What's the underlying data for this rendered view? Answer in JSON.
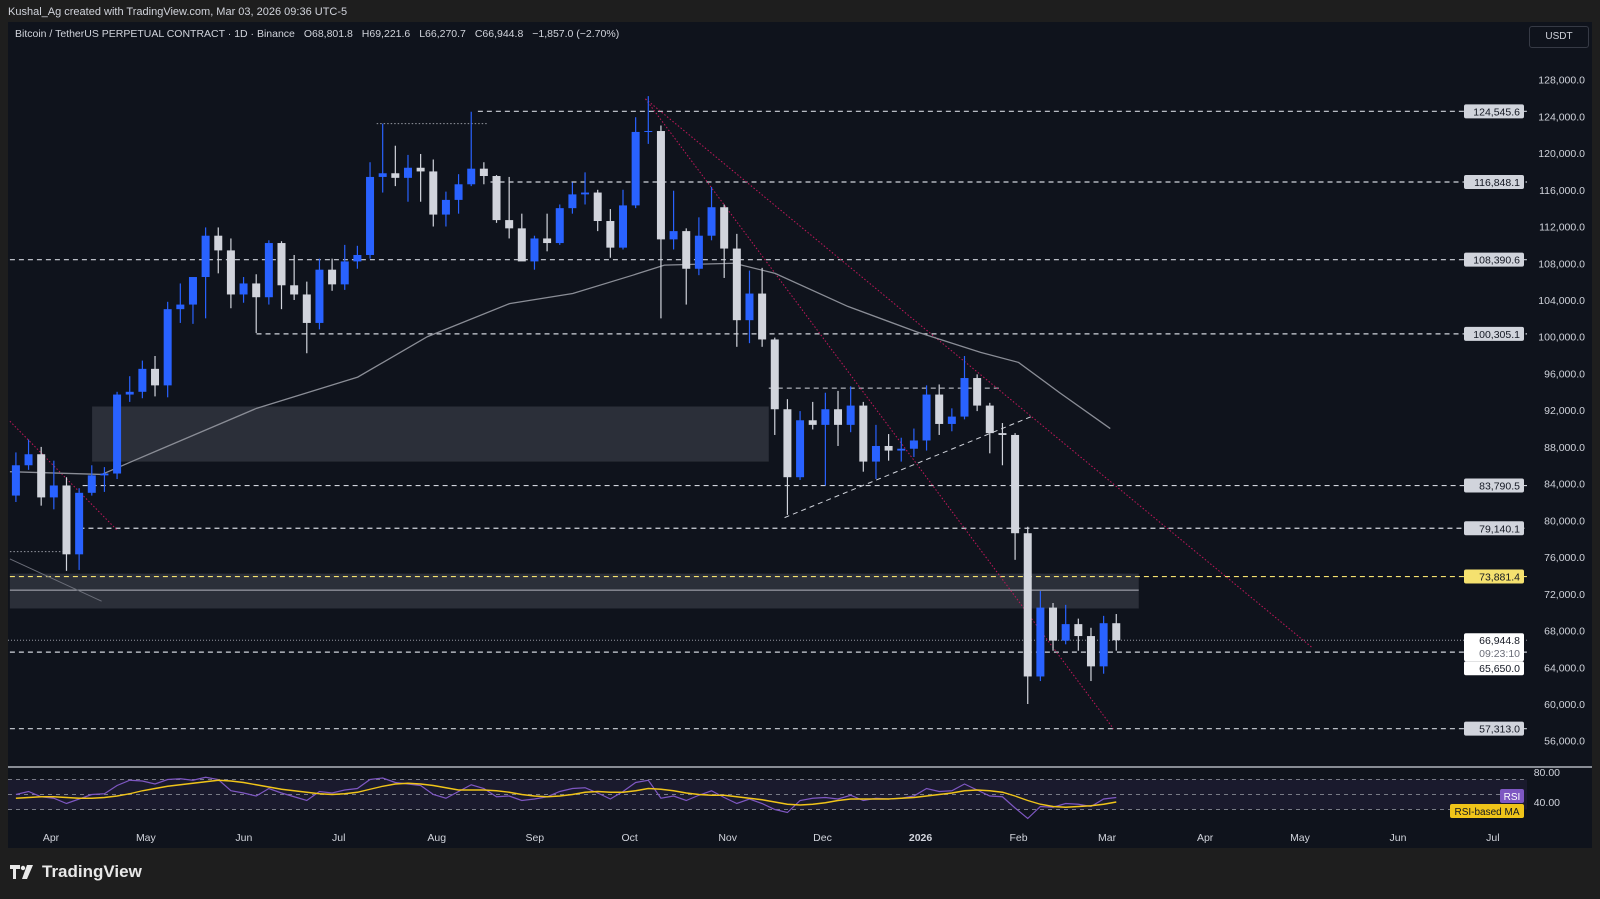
{
  "credit": "Kushal_Ag created with TradingView.com, Mar 03, 2026 09:36 UTC-5",
  "legend": {
    "symbol": "Bitcoin / TetherUS PERPETUAL CONTRACT · 1D · Binance",
    "open": "O68,801.8",
    "high": "H69,221.6",
    "low": "L66,270.7",
    "close": "C66,944.8",
    "change": "−1,857.0 (−2.70%)"
  },
  "currency": "USDT",
  "brand": "TradingView",
  "colors": {
    "background": "#0f131c",
    "up": "#2962ff",
    "down": "#d1d4dc",
    "ma": "#8a8d96",
    "trendline": "#c2185b",
    "rsi": "#7e57c2",
    "rsi_ma": "#f0c419",
    "highlight_level": "#f5e16f"
  },
  "chart_data": {
    "type": "candlestick",
    "price_axis": {
      "range": [
        55000,
        130000
      ],
      "ticks": [
        "128,000.0",
        "124,000.0",
        "120,000.0",
        "116,000.0",
        "112,000.0",
        "108,000.0",
        "104,000.0",
        "100,000.0",
        "96,000.0",
        "92,000.0",
        "88,000.0",
        "84,000.0",
        "80,000.0",
        "76,000.0",
        "72,000.0",
        "68,000.0",
        "64,000.0",
        "60,000.0",
        "56,000.0"
      ]
    },
    "time_axis": {
      "ticks": [
        [
          "2025-04-01",
          "Apr"
        ],
        [
          "2025-05-01",
          "May"
        ],
        [
          "2025-06-01",
          "Jun"
        ],
        [
          "2025-07-01",
          "Jul"
        ],
        [
          "2025-08-01",
          "Aug"
        ],
        [
          "2025-09-01",
          "Sep"
        ],
        [
          "2025-10-01",
          "Oct"
        ],
        [
          "2025-11-01",
          "Nov"
        ],
        [
          "2025-12-01",
          "Dec"
        ],
        [
          "2026-01-01",
          "2026"
        ],
        [
          "2026-02-01",
          "Feb"
        ],
        [
          "2026-03-01",
          "Mar"
        ],
        [
          "2026-04-01",
          "Apr"
        ],
        [
          "2026-05-01",
          "May"
        ],
        [
          "2026-06-01",
          "Jun"
        ],
        [
          "2026-07-01",
          "Jul"
        ]
      ]
    },
    "candles_columns": [
      "date",
      "open",
      "high",
      "low",
      "close"
    ],
    "candles": [
      [
        "2025-03-19",
        82700,
        87400,
        82000,
        86000
      ],
      [
        "2025-03-23",
        86000,
        88800,
        85500,
        87200
      ],
      [
        "2025-03-27",
        87200,
        88000,
        81600,
        82500
      ],
      [
        "2025-03-31",
        82500,
        86500,
        81200,
        83800
      ],
      [
        "2025-04-04",
        83800,
        84700,
        74500,
        76300
      ],
      [
        "2025-04-08",
        76300,
        83500,
        74600,
        83000
      ],
      [
        "2025-04-12",
        83000,
        86000,
        82700,
        84900
      ],
      [
        "2025-04-16",
        84900,
        85800,
        83100,
        85100
      ],
      [
        "2025-04-20",
        85100,
        94000,
        84500,
        93700
      ],
      [
        "2025-04-24",
        93700,
        95700,
        92900,
        94000
      ],
      [
        "2025-04-28",
        94000,
        97400,
        93300,
        96500
      ],
      [
        "2025-05-02",
        96500,
        97900,
        93500,
        94700
      ],
      [
        "2025-05-06",
        94700,
        103800,
        93400,
        103000
      ],
      [
        "2025-05-10",
        103000,
        105800,
        101500,
        103500
      ],
      [
        "2025-05-14",
        103500,
        106000,
        101400,
        106500
      ],
      [
        "2025-05-18",
        106500,
        111900,
        102000,
        111000
      ],
      [
        "2025-05-22",
        111000,
        111900,
        106900,
        109400
      ],
      [
        "2025-05-26",
        109400,
        110700,
        103100,
        104600
      ],
      [
        "2025-05-30",
        104600,
        106500,
        103700,
        105800
      ],
      [
        "2025-06-03",
        105800,
        106800,
        100400,
        104300
      ],
      [
        "2025-06-07",
        104300,
        110500,
        103500,
        110200
      ],
      [
        "2025-06-11",
        110200,
        110400,
        103000,
        105600
      ],
      [
        "2025-06-15",
        105600,
        108900,
        104000,
        104600
      ],
      [
        "2025-06-19",
        104600,
        106000,
        98200,
        101500
      ],
      [
        "2025-06-23",
        101500,
        108500,
        100800,
        107300
      ],
      [
        "2025-06-27",
        107300,
        108500,
        105000,
        105700
      ],
      [
        "2025-07-01",
        105700,
        110000,
        105100,
        108200
      ],
      [
        "2025-07-05",
        108200,
        109900,
        107400,
        108900
      ],
      [
        "2025-07-09",
        108900,
        119000,
        108500,
        117400
      ],
      [
        "2025-07-13",
        117400,
        123200,
        115700,
        117800
      ],
      [
        "2025-07-17",
        117800,
        120800,
        116400,
        117300
      ],
      [
        "2025-07-21",
        117300,
        119800,
        114700,
        118400
      ],
      [
        "2025-07-25",
        118400,
        119900,
        114700,
        118000
      ],
      [
        "2025-07-29",
        118000,
        119300,
        112000,
        113300
      ],
      [
        "2025-08-02",
        113300,
        115800,
        112000,
        114900
      ],
      [
        "2025-08-06",
        114900,
        117700,
        113400,
        116600
      ],
      [
        "2025-08-10",
        116600,
        124500,
        116400,
        118300
      ],
      [
        "2025-08-14",
        118300,
        119000,
        116600,
        117500
      ],
      [
        "2025-08-18",
        117500,
        117600,
        112400,
        112700
      ],
      [
        "2025-08-22",
        112700,
        117400,
        110700,
        111800
      ],
      [
        "2025-08-26",
        111800,
        113400,
        108600,
        108200
      ],
      [
        "2025-08-30",
        108200,
        111000,
        107300,
        110700
      ],
      [
        "2025-09-03",
        110700,
        113400,
        109300,
        110200
      ],
      [
        "2025-09-07",
        110200,
        114400,
        110000,
        114000
      ],
      [
        "2025-09-11",
        114000,
        116800,
        113400,
        115500
      ],
      [
        "2025-09-15",
        115500,
        117900,
        114400,
        115700
      ],
      [
        "2025-09-19",
        115700,
        116000,
        111500,
        112600
      ],
      [
        "2025-09-23",
        112600,
        113900,
        108600,
        109700
      ],
      [
        "2025-09-27",
        109700,
        116000,
        109500,
        114300
      ],
      [
        "2025-10-01",
        114300,
        123900,
        114000,
        122300
      ],
      [
        "2025-10-05",
        122300,
        126200,
        121000,
        122400
      ],
      [
        "2025-10-09",
        122400,
        123000,
        102000,
        110600
      ],
      [
        "2025-10-13",
        110600,
        115900,
        109500,
        111500
      ],
      [
        "2025-10-17",
        111500,
        111800,
        103500,
        107400
      ],
      [
        "2025-10-21",
        107400,
        113000,
        106700,
        111000
      ],
      [
        "2025-10-25",
        111000,
        116300,
        110500,
        114100
      ],
      [
        "2025-10-29",
        114100,
        114400,
        106400,
        109600
      ],
      [
        "2025-11-02",
        109600,
        111200,
        98900,
        101800
      ],
      [
        "2025-11-06",
        101800,
        107200,
        99300,
        104700
      ],
      [
        "2025-11-10",
        104700,
        107500,
        98900,
        99700
      ],
      [
        "2025-11-14",
        99700,
        99900,
        89300,
        92100
      ],
      [
        "2025-11-18",
        92100,
        93200,
        80600,
        84700
      ],
      [
        "2025-11-22",
        84700,
        91900,
        84400,
        90900
      ],
      [
        "2025-11-26",
        90900,
        92900,
        89900,
        90400
      ],
      [
        "2025-11-30",
        90400,
        93900,
        83800,
        92100
      ],
      [
        "2025-12-04",
        92100,
        94100,
        88100,
        90400
      ],
      [
        "2025-12-08",
        90400,
        94600,
        89600,
        92500
      ],
      [
        "2025-12-12",
        92500,
        92900,
        85300,
        86400
      ],
      [
        "2025-12-16",
        86400,
        90400,
        84500,
        88100
      ],
      [
        "2025-12-20",
        88100,
        89400,
        86500,
        87600
      ],
      [
        "2025-12-24",
        87600,
        89000,
        86400,
        87800
      ],
      [
        "2025-12-28",
        87800,
        90000,
        86900,
        88700
      ],
      [
        "2026-01-01",
        88700,
        94700,
        87600,
        93700
      ],
      [
        "2026-01-05",
        93700,
        94800,
        89300,
        90500
      ],
      [
        "2026-01-09",
        90500,
        92200,
        89700,
        91300
      ],
      [
        "2026-01-13",
        91300,
        97900,
        91000,
        95500
      ],
      [
        "2026-01-17",
        95500,
        95900,
        91900,
        92500
      ],
      [
        "2026-01-21",
        92500,
        92800,
        87300,
        89500
      ],
      [
        "2026-01-25",
        89500,
        90600,
        86000,
        89300
      ],
      [
        "2026-01-29",
        89300,
        89500,
        75700,
        78600
      ],
      [
        "2026-02-02",
        78600,
        79300,
        60000,
        63000
      ],
      [
        "2026-02-06",
        63000,
        72300,
        62500,
        70500
      ],
      [
        "2026-02-10",
        70500,
        71000,
        65800,
        66900
      ],
      [
        "2026-02-14",
        66900,
        70800,
        66500,
        68700
      ],
      [
        "2026-02-18",
        68700,
        69300,
        65800,
        67400
      ],
      [
        "2026-02-22",
        67400,
        68300,
        62500,
        64100
      ],
      [
        "2026-02-26",
        64100,
        69600,
        63300,
        68800
      ],
      [
        "2026-03-02",
        68800,
        69800,
        65800,
        66945
      ]
    ],
    "moving_average": [
      [
        "2025-03-19",
        85300
      ],
      [
        "2025-04-17",
        85000
      ],
      [
        "2025-05-06",
        87800
      ],
      [
        "2025-06-05",
        92200
      ],
      [
        "2025-07-07",
        95600
      ],
      [
        "2025-07-29",
        100000
      ],
      [
        "2025-08-24",
        103600
      ],
      [
        "2025-09-13",
        104700
      ],
      [
        "2025-10-02",
        106700
      ],
      [
        "2025-10-12",
        107800
      ],
      [
        "2025-11-03",
        108000
      ],
      [
        "2025-11-16",
        106900
      ],
      [
        "2025-12-09",
        103300
      ],
      [
        "2025-12-31",
        100500
      ],
      [
        "2026-01-20",
        98300
      ],
      [
        "2026-02-01",
        97200
      ],
      [
        "2026-02-14",
        93900
      ],
      [
        "2026-03-02",
        90000
      ]
    ],
    "levels": [
      {
        "price": 124545.6,
        "label": "124,545.6",
        "start": "2025-08-14",
        "style": "dashed",
        "tag": "light"
      },
      {
        "price": 116848.1,
        "label": "116,848.1",
        "start": "2025-08-18",
        "style": "dashed",
        "tag": "light"
      },
      {
        "price": 108390.6,
        "label": "108,390.6",
        "start": "2025-03-19",
        "style": "dashed",
        "tag": "light"
      },
      {
        "price": 100305.1,
        "label": "100,305.1",
        "start": "2025-06-05",
        "style": "dashed",
        "tag": "light"
      },
      {
        "price": 83790.5,
        "label": "83,790.5",
        "start": "2025-04-11",
        "style": "dashed",
        "tag": "light"
      },
      {
        "price": 79140.1,
        "label": "79,140.1",
        "start": "2025-04-10",
        "style": "dashed",
        "tag": "light"
      },
      {
        "price": 73881.4,
        "label": "73,881.4",
        "start": "2025-03-19",
        "style": "dashed",
        "tag": "yellow"
      },
      {
        "price": 65650.0,
        "label": "65,650.0",
        "start": "2025-03-19",
        "style": "dashed",
        "tag": "white"
      },
      {
        "price": 57313.0,
        "label": "57,313.0",
        "start": "2025-03-19",
        "style": "dashed",
        "tag": "light"
      }
    ],
    "segments": [
      {
        "from": [
          "2025-11-14",
          94400
        ],
        "to": [
          "2026-01-27",
          94400
        ],
        "style": "dashed",
        "color": "#d1d4dc"
      },
      {
        "from": [
          "2025-07-13",
          123200
        ],
        "to": [
          "2025-08-17",
          123200
        ],
        "style": "dotted",
        "color": "#9598a1"
      },
      {
        "from": [
          "2025-03-19",
          76600
        ],
        "to": [
          "2025-04-07",
          76600
        ],
        "style": "dotted",
        "color": "#9598a1"
      },
      {
        "from": [
          "2025-11-19",
          80300
        ],
        "to": [
          "2026-02-05",
          91300
        ],
        "style": "dashed",
        "color": "#d1d4dc"
      },
      {
        "from": [
          "2025-03-19",
          75800
        ],
        "to": [
          "2025-04-17",
          71200
        ],
        "style": "solid",
        "color": "#6a6d78"
      },
      {
        "from": [
          "2025-10-06",
          125900
        ],
        "to": [
          "2026-03-03",
          57300
        ],
        "style": "dotted",
        "color": "#c2185b"
      },
      {
        "from": [
          "2025-10-06",
          125900
        ],
        "to": [
          "2026-05-05",
          66100
        ],
        "style": "dotted",
        "color": "#c2185b"
      },
      {
        "from": [
          "2025-03-19",
          90800
        ],
        "to": [
          "2025-04-22",
          78900
        ],
        "style": "dotted",
        "color": "#c2185b"
      }
    ],
    "zones": [
      {
        "from": "2025-04-14",
        "to": "2025-11-14",
        "top": 92400,
        "bottom": 86400
      },
      {
        "from": "2025-03-19",
        "to": "2026-03-11",
        "top": 74200,
        "bottom": 70400,
        "midline": 72400
      }
    ],
    "current_price": {
      "price": 66944.8,
      "label": "66,944.8",
      "countdown": "09:23:10"
    },
    "rsi": {
      "axis_ticks": [
        [
          "80",
          "80.00"
        ],
        [
          "40",
          "40.00"
        ]
      ],
      "bands": [
        70,
        50,
        30
      ],
      "label": "RSI",
      "ma_label": "RSI-based MA",
      "values": [
        50,
        54,
        47,
        45,
        38,
        44,
        50,
        51,
        62,
        69,
        68,
        64,
        70,
        71,
        69,
        73,
        70,
        55,
        52,
        48,
        58,
        52,
        47,
        42,
        54,
        52,
        56,
        58,
        70,
        72,
        66,
        64,
        62,
        50,
        45,
        54,
        63,
        58,
        47,
        48,
        42,
        44,
        47,
        54,
        58,
        59,
        52,
        44,
        54,
        66,
        69,
        45,
        48,
        42,
        49,
        55,
        46,
        38,
        44,
        38,
        30,
        26,
        42,
        45,
        46,
        44,
        49,
        42,
        45,
        44,
        45,
        48,
        58,
        54,
        55,
        64,
        56,
        48,
        47,
        32,
        18,
        34,
        33,
        38,
        37,
        34,
        44,
        46
      ],
      "ma_values": [
        45,
        46,
        47,
        47,
        46,
        45,
        45,
        46,
        48,
        51,
        55,
        58,
        61,
        63,
        65,
        67,
        69,
        68,
        66,
        63,
        60,
        57,
        55,
        53,
        51,
        50,
        51,
        53,
        57,
        61,
        64,
        65,
        64,
        62,
        59,
        56,
        56,
        56,
        55,
        53,
        50,
        48,
        47,
        48,
        50,
        53,
        54,
        53,
        53,
        55,
        58,
        57,
        55,
        52,
        50,
        49,
        49,
        47,
        45,
        43,
        40,
        37,
        36,
        37,
        39,
        42,
        44,
        44,
        44,
        44,
        45,
        46,
        48,
        50,
        52,
        55,
        56,
        55,
        53,
        48,
        42,
        37,
        34,
        33,
        34,
        35,
        37,
        40
      ]
    }
  }
}
